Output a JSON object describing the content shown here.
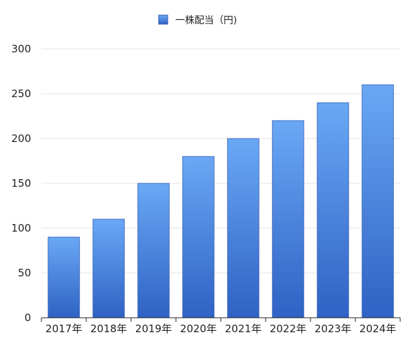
{
  "chart_data": {
    "type": "bar",
    "categories": [
      "2017年",
      "2018年",
      "2019年",
      "2020年",
      "2021年",
      "2022年",
      "2023年",
      "2024年"
    ],
    "series": [
      {
        "name": "一株配当（円)",
        "values": [
          90,
          110,
          150,
          180,
          200,
          220,
          240,
          260
        ]
      }
    ],
    "ylim": [
      0,
      300
    ],
    "yticks": [
      0,
      50,
      100,
      150,
      200,
      250,
      300
    ],
    "grid": true,
    "legend": "top-center",
    "colors": {
      "bar_top": "#6aa8f5",
      "bar_bottom": "#2f62c4",
      "bar_stroke": "#2a57b0",
      "grid": "#e3e3e3",
      "axis": "#222222"
    }
  }
}
